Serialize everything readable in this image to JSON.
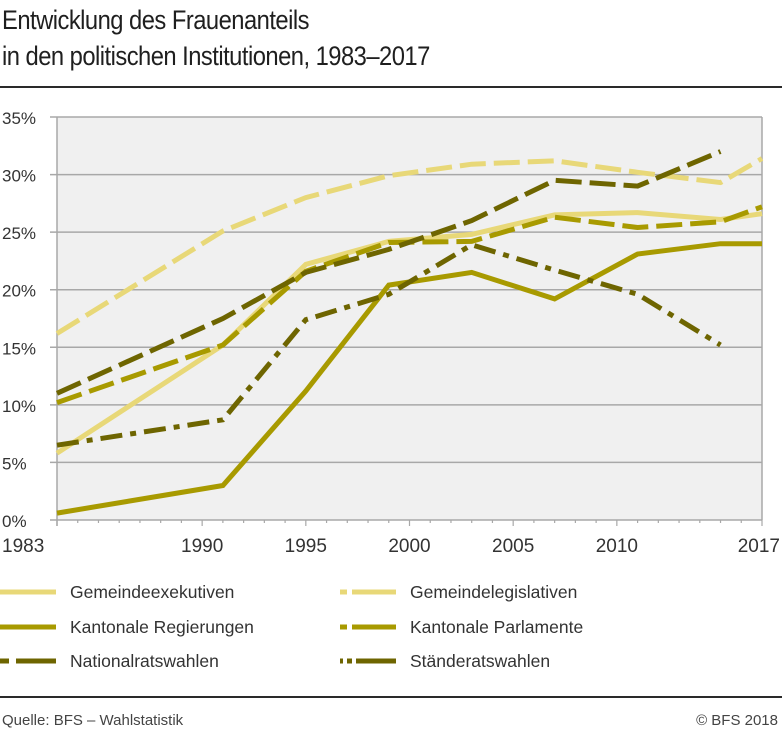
{
  "header": {
    "title_line1": "Entwicklung des Frauenanteils",
    "title_line2": "in den politischen Institutionen, 1983–2017"
  },
  "footer": {
    "source": "Quelle: BFS – Wahlstatistik",
    "copyright": "© BFS 2018"
  },
  "colors": {
    "light": "#e8d878",
    "mid": "#a89a00",
    "dark": "#6e6500",
    "plot_bg": "#f0f0f0",
    "grid": "#a8a8a8"
  },
  "chart_data": {
    "type": "line",
    "title": "Entwicklung des Frauenanteils in den politischen Institutionen, 1983–2017",
    "xlabel": "",
    "ylabel": "",
    "xlim": [
      1983,
      2017
    ],
    "ylim": [
      0,
      35
    ],
    "x_ticks": [
      1983,
      1990,
      1995,
      2000,
      2005,
      2010,
      2017
    ],
    "x_tick_labels": [
      "1983",
      "1990",
      "1995",
      "2000",
      "2005",
      "2010",
      "2017"
    ],
    "y_ticks": [
      0,
      5,
      10,
      15,
      20,
      25,
      30,
      35
    ],
    "y_tick_labels": [
      "0%",
      "5%",
      "10%",
      "15%",
      "20%",
      "25%",
      "30%",
      "35%"
    ],
    "grid": true,
    "legend_position": "bottom",
    "series": [
      {
        "name": "Gemeindeexekutiven",
        "color": "light",
        "dash": "solid",
        "points": [
          [
            1983,
            5.8
          ],
          [
            1991,
            15.2
          ],
          [
            1995,
            22.2
          ],
          [
            1999,
            24.2
          ],
          [
            2003,
            24.8
          ],
          [
            2007,
            26.5
          ],
          [
            2011,
            26.7
          ],
          [
            2015,
            26.1
          ],
          [
            2017,
            26.6
          ]
        ]
      },
      {
        "name": "Gemeindelegislativen",
        "color": "light",
        "dash": "dash",
        "points": [
          [
            1983,
            16.2
          ],
          [
            1991,
            25.1
          ],
          [
            1995,
            28.0
          ],
          [
            1999,
            29.9
          ],
          [
            2003,
            30.9
          ],
          [
            2007,
            31.2
          ],
          [
            2011,
            30.2
          ],
          [
            2015,
            29.3
          ],
          [
            2017,
            31.4
          ]
        ]
      },
      {
        "name": "Kantonale Regierungen",
        "color": "mid",
        "dash": "solid",
        "points": [
          [
            1983,
            0.6
          ],
          [
            1991,
            3.0
          ],
          [
            1995,
            11.2
          ],
          [
            1999,
            20.4
          ],
          [
            2003,
            21.5
          ],
          [
            2007,
            19.2
          ],
          [
            2011,
            23.1
          ],
          [
            2015,
            24.0
          ],
          [
            2017,
            24.0
          ]
        ]
      },
      {
        "name": "Kantonale Parlamente",
        "color": "mid",
        "dash": "dash",
        "points": [
          [
            1983,
            10.2
          ],
          [
            1991,
            15.2
          ],
          [
            1995,
            21.6
          ],
          [
            1999,
            24.1
          ],
          [
            2003,
            24.2
          ],
          [
            2007,
            26.3
          ],
          [
            2011,
            25.4
          ],
          [
            2015,
            25.9
          ],
          [
            2017,
            27.2
          ]
        ]
      },
      {
        "name": "Nationalratswahlen",
        "color": "dark",
        "dash": "dash",
        "points": [
          [
            1983,
            11.0
          ],
          [
            1991,
            17.5
          ],
          [
            1995,
            21.5
          ],
          [
            1999,
            23.5
          ],
          [
            2003,
            26.0
          ],
          [
            2007,
            29.5
          ],
          [
            2011,
            29.0
          ],
          [
            2015,
            32.0
          ]
        ]
      },
      {
        "name": "Ständeratswahlen",
        "color": "dark",
        "dash": "dashdot",
        "points": [
          [
            1983,
            6.5
          ],
          [
            1991,
            8.7
          ],
          [
            1995,
            17.4
          ],
          [
            1999,
            19.6
          ],
          [
            2003,
            23.9
          ],
          [
            2007,
            21.7
          ],
          [
            2011,
            19.6
          ],
          [
            2015,
            15.2
          ]
        ]
      }
    ]
  },
  "legend": {
    "items": [
      {
        "label": "Gemeindeexekutiven"
      },
      {
        "label": "Gemeindelegislativen"
      },
      {
        "label": "Kantonale Regierungen"
      },
      {
        "label": "Kantonale Parlamente"
      },
      {
        "label": "Nationalratswahlen"
      },
      {
        "label": "Ständeratswahlen"
      }
    ]
  }
}
